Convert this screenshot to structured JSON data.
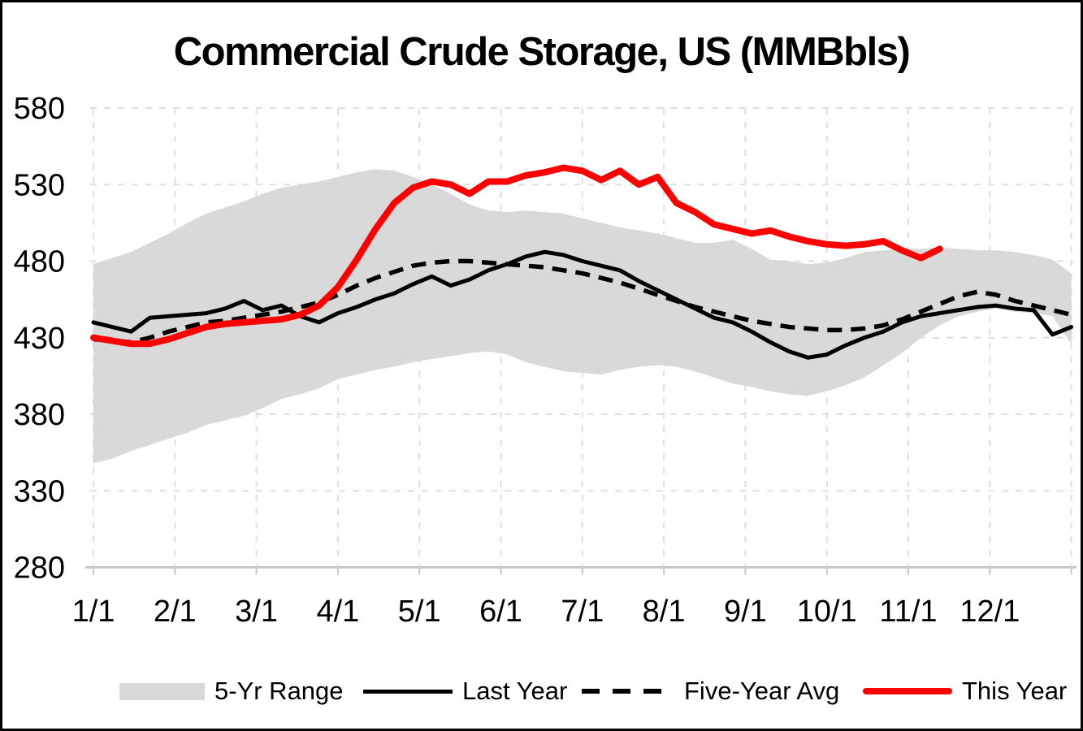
{
  "title": "Commercial Crude Storage, US (MMBbls)",
  "colors": {
    "background": "#FFFFFF",
    "frame": "#000000",
    "text": "#000000",
    "gridline": "#DFDFDF",
    "axis_line": "#C8C8C8",
    "range_fill": "#D9D9D9",
    "last_year": "#000000",
    "five_year_avg": "#000000",
    "this_year": "#FF0000"
  },
  "legend": {
    "position": "bottom",
    "items": [
      {
        "label": "5-Yr Range",
        "swatch": "band"
      },
      {
        "label": "Last Year",
        "swatch": "solid-line"
      },
      {
        "label": "Five-Year Avg",
        "swatch": "dashed-line"
      },
      {
        "label": "This Year",
        "swatch": "red-line"
      }
    ]
  },
  "chart_data": {
    "type": "line",
    "title": "Commercial Crude Storage, US (MMBbls)",
    "x_unit": "weekly observations across one year",
    "x_tick_labels": [
      "1/1",
      "2/1",
      "3/1",
      "4/1",
      "5/1",
      "6/1",
      "7/1",
      "8/1",
      "9/1",
      "10/1",
      "11/1",
      "12/1"
    ],
    "y_ticks": [
      280,
      330,
      380,
      430,
      480,
      530,
      580
    ],
    "ylim": [
      280,
      580
    ],
    "grid": "dashed horizontal and vertical (monthly)",
    "legend_position": "bottom",
    "series": [
      {
        "name": "5-Yr Range",
        "type": "band",
        "upper": [
          478,
          482,
          486,
          492,
          498,
          505,
          511,
          515,
          519,
          524,
          528,
          530,
          532,
          535,
          538,
          540,
          539,
          535,
          530,
          524,
          517,
          513,
          512,
          513,
          512,
          511,
          508,
          505,
          502,
          500,
          498,
          495,
          492,
          492,
          494,
          488,
          481,
          480,
          478,
          479,
          482,
          486,
          487,
          488,
          488,
          489,
          488,
          487,
          487,
          486,
          484,
          481,
          472
        ],
        "lower": [
          348,
          351,
          356,
          360,
          364,
          368,
          373,
          376,
          379,
          384,
          390,
          393,
          397,
          403,
          406,
          409,
          411,
          414,
          416,
          418,
          420,
          421,
          419,
          414,
          411,
          408,
          407,
          406,
          409,
          411,
          412,
          411,
          408,
          404,
          400,
          398,
          395,
          393,
          392,
          395,
          399,
          404,
          412,
          420,
          430,
          438,
          444,
          447,
          449,
          447,
          446,
          444,
          426
        ]
      },
      {
        "name": "Last Year",
        "type": "line",
        "style": "solid",
        "values": [
          440,
          437,
          434,
          443,
          444,
          445,
          446,
          449,
          454,
          448,
          451,
          444,
          440,
          446,
          450,
          455,
          459,
          465,
          470,
          464,
          468,
          474,
          478,
          483,
          486,
          484,
          480,
          477,
          474,
          467,
          461,
          455,
          449,
          443,
          440,
          434,
          427,
          421,
          417,
          419,
          425,
          430,
          434,
          440,
          444,
          446,
          448,
          450,
          451,
          449,
          448,
          432,
          437
        ]
      },
      {
        "name": "Five-Year Avg",
        "type": "line",
        "style": "dashed",
        "values": [
          429,
          428,
          427,
          430,
          434,
          437,
          440,
          441,
          443,
          445,
          447,
          450,
          453,
          458,
          464,
          469,
          473,
          477,
          479,
          480,
          480,
          479,
          478,
          477,
          476,
          474,
          472,
          469,
          466,
          462,
          458,
          454,
          450,
          447,
          444,
          441,
          439,
          437,
          436,
          435,
          435,
          436,
          438,
          442,
          447,
          452,
          457,
          460,
          458,
          454,
          451,
          448,
          445
        ]
      },
      {
        "name": "This Year",
        "type": "line",
        "style": "solid-thick",
        "values": [
          430,
          428,
          426,
          426,
          429,
          433,
          437,
          439,
          440,
          441,
          442,
          445,
          451,
          463,
          481,
          501,
          518,
          528,
          532,
          530,
          524,
          532,
          532,
          536,
          538,
          541,
          539,
          533,
          539,
          530,
          535,
          518,
          512,
          504,
          501,
          498,
          500,
          496,
          493,
          491,
          490,
          491,
          493,
          487,
          482,
          488
        ]
      }
    ]
  }
}
